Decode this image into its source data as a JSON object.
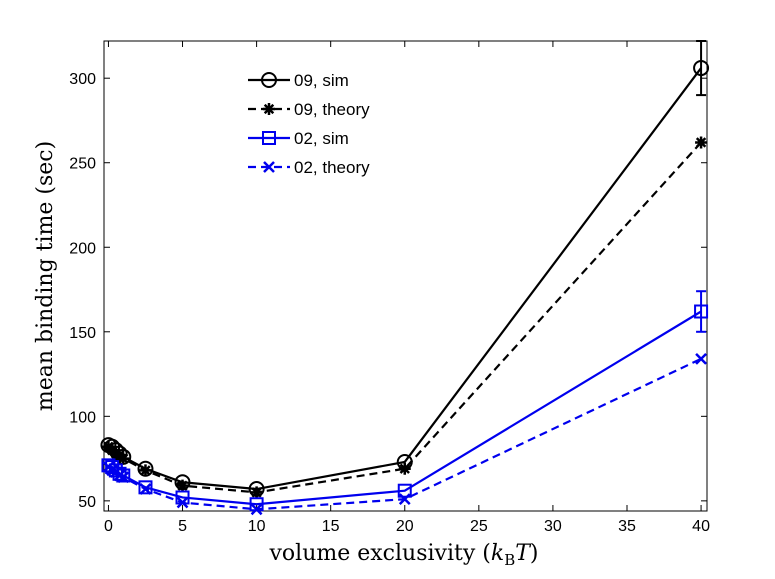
{
  "chart_data": {
    "type": "line",
    "title": "",
    "xlabel": "volume exclusivity (k_B T)",
    "ylabel": "mean binding time (sec)",
    "xlabel_parts": {
      "prefix": "volume exclusivity (",
      "k": "k",
      "sub": "B",
      "T": "T",
      "suffix": ")"
    },
    "xlim": [
      -0.3,
      40.4
    ],
    "ylim": [
      44,
      322
    ],
    "xticks": [
      0,
      5,
      10,
      15,
      20,
      25,
      30,
      35,
      40
    ],
    "yticks": [
      50,
      100,
      150,
      200,
      250,
      300
    ],
    "grid": false,
    "legend_position": "top-center",
    "series": [
      {
        "name": "09, sim",
        "color": "#000000",
        "dash": "solid",
        "marker": "circle",
        "x": [
          0,
          0.25,
          0.5,
          0.75,
          1,
          2.5,
          5,
          10,
          20,
          40
        ],
        "y": [
          83,
          82,
          80,
          78,
          76,
          69,
          61,
          57,
          73,
          306
        ],
        "err": [
          0,
          0,
          0,
          0,
          0,
          0,
          0,
          0,
          0,
          16
        ]
      },
      {
        "name": "09, theory",
        "color": "#000000",
        "dash": "dashed",
        "marker": "asterisk",
        "x": [
          0,
          0.25,
          0.5,
          0.75,
          1,
          2.5,
          5,
          10,
          20,
          40
        ],
        "y": [
          82,
          80,
          78,
          77,
          75,
          68,
          59,
          55,
          69,
          262
        ]
      },
      {
        "name": "02, sim",
        "color": "#0000ee",
        "dash": "solid",
        "marker": "square",
        "x": [
          0,
          0.25,
          0.5,
          0.75,
          1,
          2.5,
          5,
          10,
          20,
          40
        ],
        "y": [
          71,
          70,
          68,
          66,
          65,
          58,
          52,
          48,
          56,
          162
        ],
        "err": [
          0,
          0,
          0,
          0,
          0,
          0,
          0,
          0,
          0,
          12
        ]
      },
      {
        "name": "02, theory",
        "color": "#0000ee",
        "dash": "dashed",
        "marker": "x",
        "x": [
          0,
          0.25,
          0.5,
          0.75,
          1,
          2.5,
          5,
          10,
          20,
          40
        ],
        "y": [
          70,
          68,
          67,
          65,
          64,
          57,
          49,
          45,
          51,
          134
        ]
      }
    ]
  }
}
